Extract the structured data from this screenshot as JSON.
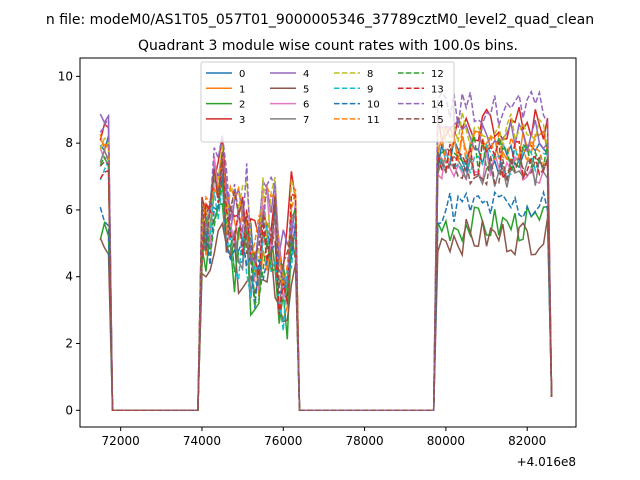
{
  "chart_data": {
    "type": "line",
    "suptitle": "n file: modeM0/AS1T05_057T01_9000005346_37789cztM0_level2_quad_clean",
    "title": "Quadrant 3 module wise count rates with 100.0s bins.",
    "xlabel": "",
    "ylabel": "",
    "x_offset_label": "+4.016e8",
    "xlim": [
      71000,
      83200
    ],
    "ylim": [
      -0.5,
      10.55
    ],
    "xticks": [
      72000,
      74000,
      76000,
      78000,
      80000,
      82000
    ],
    "xtick_labels": [
      "72000",
      "74000",
      "76000",
      "78000",
      "80000",
      "82000"
    ],
    "yticks": [
      0,
      2,
      4,
      6,
      8,
      10
    ],
    "ytick_labels": [
      "0",
      "2",
      "4",
      "6",
      "8",
      "10"
    ],
    "grid": false,
    "legend_position": "top-center",
    "legend_columns": 4,
    "bin_size_s": 100,
    "series": [
      {
        "name": "0",
        "color": "#1f77b4",
        "dash": "solid",
        "level1": 7.9,
        "level2": 5.5,
        "level3": 7.6
      },
      {
        "name": "1",
        "color": "#ff7f0e",
        "dash": "solid",
        "level1": 8.2,
        "level2": 5.2,
        "level3": 8.0
      },
      {
        "name": "2",
        "color": "#2ca02c",
        "dash": "solid",
        "level1": 5.3,
        "level2": 4.6,
        "level3": 5.6
      },
      {
        "name": "3",
        "color": "#d62728",
        "dash": "solid",
        "level1": 8.4,
        "level2": 6.2,
        "level3": 8.6
      },
      {
        "name": "4",
        "color": "#9467bd",
        "dash": "solid",
        "level1": 8.6,
        "level2": 6.0,
        "level3": 8.2
      },
      {
        "name": "5",
        "color": "#8c564b",
        "dash": "solid",
        "level1": 5.0,
        "level2": 4.1,
        "level3": 5.2
      },
      {
        "name": "6",
        "color": "#e377c2",
        "dash": "solid",
        "level1": 7.8,
        "level2": 5.6,
        "level3": 7.3
      },
      {
        "name": "7",
        "color": "#7f7f7f",
        "dash": "solid",
        "level1": 7.5,
        "level2": 5.3,
        "level3": 7.1
      },
      {
        "name": "8",
        "color": "#bcbd22",
        "dash": "dashed",
        "level1": 8.0,
        "level2": 5.9,
        "level3": 8.4
      },
      {
        "name": "9",
        "color": "#17becf",
        "dash": "dashed",
        "level1": 7.2,
        "level2": 5.0,
        "level3": 7.4
      },
      {
        "name": "10",
        "color": "#1f77b4",
        "dash": "dashed",
        "level1": 5.8,
        "level2": 4.9,
        "level3": 6.1
      },
      {
        "name": "11",
        "color": "#ff7f0e",
        "dash": "dashed",
        "level1": 8.1,
        "level2": 5.8,
        "level3": 7.9
      },
      {
        "name": "12",
        "color": "#2ca02c",
        "dash": "dashed",
        "level1": 7.3,
        "level2": 5.1,
        "level3": 7.7
      },
      {
        "name": "13",
        "color": "#d62728",
        "dash": "dashed",
        "level1": 7.0,
        "level2": 5.4,
        "level3": 7.5
      },
      {
        "name": "14",
        "color": "#9467bd",
        "dash": "dashed",
        "level1": 8.5,
        "level2": 6.4,
        "level3": 9.0
      },
      {
        "name": "15",
        "color": "#8c564b",
        "dash": "dashed",
        "level1": 7.6,
        "level2": 5.5,
        "level3": 7.2
      }
    ]
  }
}
